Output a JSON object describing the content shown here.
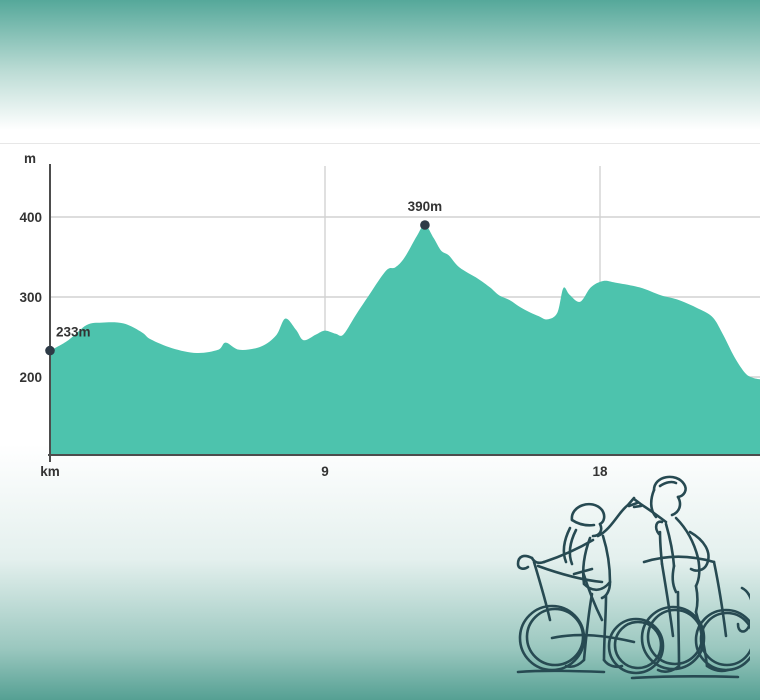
{
  "theme": {
    "band_teal_top": "#55a89a",
    "band_teal_bottom": "#55a093",
    "page_background": "#ffffff",
    "divider_color": "#e7e7e7"
  },
  "chart_data": {
    "type": "area",
    "title": "",
    "xlabel": "km",
    "ylabel": "m",
    "x_unit_label": "km",
    "y_unit_label": "m",
    "x_ticks": [
      9,
      18
    ],
    "y_ticks": [
      200,
      300,
      400
    ],
    "xlim": [
      0,
      23.3
    ],
    "ylim": [
      100,
      460
    ],
    "grid": true,
    "legend": false,
    "area_color": "#4dc3ad",
    "marker_color": "#2e3b47",
    "axis_color": "#4d4d4d",
    "grid_color": "#d2d2d2",
    "label_color": "#333333",
    "annotations": [
      {
        "km": 0,
        "elevation": 233,
        "label": "233m"
      },
      {
        "km": 12.27,
        "elevation": 390,
        "label": "390m"
      }
    ],
    "series": [
      {
        "name": "elevation-profile",
        "points": [
          [
            0,
            233
          ],
          [
            0.6,
            246
          ],
          [
            1.2,
            265
          ],
          [
            1.7,
            268
          ],
          [
            2.4,
            267
          ],
          [
            3.0,
            256
          ],
          [
            3.3,
            247
          ],
          [
            4.0,
            236
          ],
          [
            4.8,
            230
          ],
          [
            5.5,
            234
          ],
          [
            5.75,
            243
          ],
          [
            6.2,
            234
          ],
          [
            6.9,
            238
          ],
          [
            7.4,
            252
          ],
          [
            7.7,
            273
          ],
          [
            8.05,
            259
          ],
          [
            8.3,
            246
          ],
          [
            8.7,
            253
          ],
          [
            9.0,
            258
          ],
          [
            9.35,
            254
          ],
          [
            9.6,
            253
          ],
          [
            10.0,
            277
          ],
          [
            10.4,
            300
          ],
          [
            11.0,
            333
          ],
          [
            11.3,
            337
          ],
          [
            11.6,
            349
          ],
          [
            12.0,
            376
          ],
          [
            12.27,
            390
          ],
          [
            12.55,
            374
          ],
          [
            12.8,
            358
          ],
          [
            13.05,
            352
          ],
          [
            13.4,
            337
          ],
          [
            14.0,
            323
          ],
          [
            14.4,
            312
          ],
          [
            14.7,
            302
          ],
          [
            15.05,
            296
          ],
          [
            15.4,
            287
          ],
          [
            15.7,
            281
          ],
          [
            16.0,
            276
          ],
          [
            16.27,
            272
          ],
          [
            16.6,
            280
          ],
          [
            16.8,
            311
          ],
          [
            17.0,
            303
          ],
          [
            17.35,
            294
          ],
          [
            17.7,
            312
          ],
          [
            18.1,
            320
          ],
          [
            18.5,
            318
          ],
          [
            19.3,
            312
          ],
          [
            20.0,
            302
          ],
          [
            20.6,
            296
          ],
          [
            21.3,
            284
          ],
          [
            21.7,
            274
          ],
          [
            22.0,
            255
          ],
          [
            22.4,
            225
          ],
          [
            22.75,
            205
          ],
          [
            23.0,
            199
          ],
          [
            23.25,
            197
          ]
        ]
      }
    ]
  },
  "illustration": {
    "name": "two-cyclists-high-five-line-art",
    "description": "continuous line drawing of two helmeted cyclists high-fiving beside their bikes",
    "stroke_color": "#274a52"
  }
}
